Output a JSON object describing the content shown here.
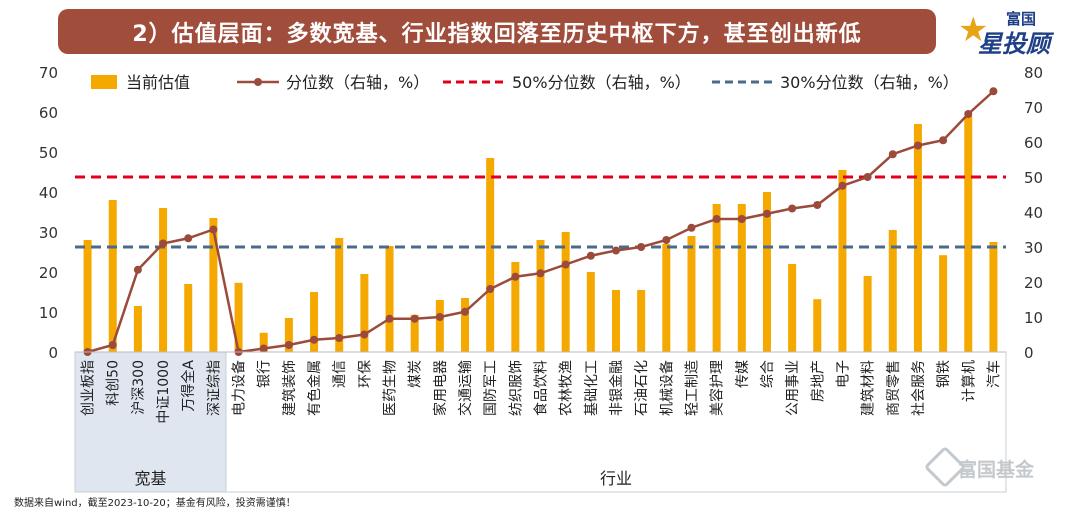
{
  "title": "2）估值层面：多数宽基、行业指数回落至历史中枢下方，甚至创出新低",
  "logo": {
    "top": "富国",
    "main": "星投顾"
  },
  "footnote": "数据来自wind，截至2023-10-20；基金有风险，投资需谨慎！",
  "watermark": "富国基金",
  "colors": {
    "bar": "#f5a800",
    "line": "#9b4a3b",
    "ref50": "#e0001b",
    "ref30": "#4a6a8a",
    "group_bg": "#dfe6f0"
  },
  "chart_data": {
    "type": "bar",
    "categories": [
      "创业板指",
      "科创50",
      "沪深300",
      "中证1000",
      "万得全A",
      "深证综指",
      "电力设备",
      "银行",
      "建筑装饰",
      "有色金属",
      "通信",
      "环保",
      "医药生物",
      "煤炭",
      "家用电器",
      "交通运输",
      "国防军工",
      "纺织服饰",
      "食品饮料",
      "农林牧渔",
      "基础化工",
      "非银金融",
      "石油石化",
      "机械设备",
      "轻工制造",
      "美容护理",
      "传媒",
      "综合",
      "公用事业",
      "房地产",
      "电子",
      "建筑材料",
      "商贸零售",
      "社会服务",
      "钢铁",
      "计算机",
      "汽车"
    ],
    "groups": [
      {
        "label": "宽基",
        "count": 6
      },
      {
        "label": "行业",
        "count": 31
      }
    ],
    "series": [
      {
        "name": "当前估值",
        "type": "bar",
        "axis": "left",
        "values": [
          28,
          38,
          11.5,
          36,
          17,
          33.5,
          17.3,
          4.8,
          8.5,
          15,
          28.5,
          19.5,
          26.5,
          9.3,
          13,
          13.5,
          48.5,
          22.5,
          28,
          30,
          20,
          15.5,
          15.5,
          27,
          29,
          37,
          37,
          40,
          22,
          13.2,
          45.5,
          19,
          30.5,
          57,
          24.2,
          59,
          27.5
        ]
      },
      {
        "name": "分位数（右轴，%）",
        "type": "line",
        "axis": "right",
        "values": [
          0,
          2,
          23.5,
          31,
          32.5,
          35,
          0,
          1,
          2,
          3.5,
          4,
          5,
          9.5,
          9.5,
          10,
          11.5,
          18,
          21.5,
          22.5,
          25,
          27.5,
          29,
          30,
          32,
          35.5,
          38,
          38,
          39.5,
          41,
          42,
          47.5,
          50,
          56.5,
          59,
          60.5,
          68,
          74.5
        ]
      },
      {
        "name": "50%分位数（右轴，%）",
        "type": "hline",
        "axis": "right",
        "value": 50
      },
      {
        "name": "30%分位数（右轴，%）",
        "type": "hline",
        "axis": "right",
        "value": 30
      }
    ],
    "y_left": {
      "min": 0,
      "max": 70,
      "ticks": [
        "0",
        "10",
        "20",
        "30",
        "40",
        "50",
        "60",
        "70"
      ]
    },
    "y_right": {
      "min": 0,
      "max": 80,
      "ticks": [
        "0",
        "10",
        "20",
        "30",
        "40",
        "50",
        "60",
        "70",
        "80"
      ]
    },
    "grid": false,
    "legend_placement": "top"
  }
}
